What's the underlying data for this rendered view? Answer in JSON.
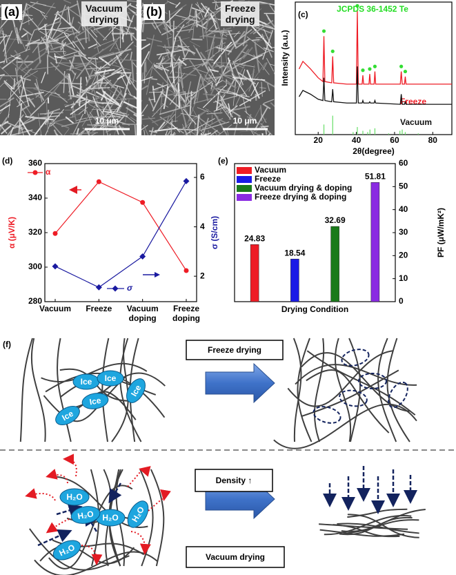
{
  "figure": {
    "a": {
      "label": "(a)",
      "caption": "Vacuum\ndrying",
      "scale_bar": "10 μm"
    },
    "b": {
      "label": "(b)",
      "caption": "Freeze\ndrying",
      "scale_bar": "10 μm"
    }
  },
  "chart_data": [
    {
      "type": "xrd",
      "label": "(c)",
      "annotation": "JCPDS 36-1452 Te",
      "ylabel": "Intensity (a.u.)",
      "xlabel": "2θ(degree)",
      "x": [
        10,
        12,
        16,
        20,
        22.5,
        23,
        23.5,
        27.1,
        27.6,
        28.1,
        35,
        40,
        40.5,
        41,
        43,
        43.4,
        43.8,
        46.6,
        47,
        47.4,
        49.3,
        49.7,
        50.1,
        63,
        63.5,
        64,
        65.2,
        65.6,
        66,
        75,
        90
      ],
      "xlim": [
        8,
        90
      ],
      "xticks": [
        20,
        40,
        60,
        80
      ],
      "ylim": [
        0,
        105
      ],
      "series": [
        {
          "name": "Freeze",
          "color": "#ee1c25",
          "values": [
            52,
            58,
            52,
            45,
            42,
            78,
            42,
            41,
            62,
            41,
            40,
            40,
            98,
            40,
            40,
            47,
            40,
            40,
            48,
            40,
            40,
            50,
            40,
            40,
            50,
            40,
            40,
            46,
            40,
            40,
            40
          ]
        },
        {
          "name": "Vacuum",
          "color": "#111111",
          "values": [
            30,
            35,
            32,
            28,
            27,
            45,
            27,
            26,
            36,
            26,
            25,
            25,
            54,
            25,
            25,
            27,
            25,
            25,
            26,
            25,
            25,
            27,
            25,
            24,
            32,
            24,
            24,
            26,
            24,
            24,
            24
          ]
        }
      ],
      "peak_markers": {
        "color": "#33dd33",
        "x": [
          23,
          27.6,
          40.5,
          43.4,
          47,
          49.7,
          63.5,
          65.6
        ],
        "values": [
          82,
          66,
          102,
          51,
          52,
          54,
          54,
          50
        ]
      },
      "reference": {
        "color": "#66dd66",
        "x": [
          23,
          27.6,
          38.3,
          40.5,
          43.4,
          45.9,
          47.1,
          49.7,
          56.9,
          62.8,
          64,
          65.6,
          72.4
        ],
        "values": [
          8,
          15,
          2,
          6,
          3,
          2,
          4,
          5,
          1,
          3,
          4,
          2,
          1
        ]
      }
    },
    {
      "type": "dual_line",
      "label": "(d)",
      "categories": [
        "Vacuum",
        "Freeze",
        "Vacuum\ndoping",
        "Freeze\ndoping"
      ],
      "ylabel": "α (μV/K)",
      "y2label": "σ (S/cm)",
      "ylim": [
        280,
        360
      ],
      "yticks": [
        280,
        300,
        320,
        340,
        360
      ],
      "y2lim": [
        0.97,
        6.56
      ],
      "y2ticks": [
        2,
        4,
        6
      ],
      "series": [
        {
          "name": "α",
          "color": "#ee1c25",
          "marker": "circle",
          "values": [
            319.5,
            349.5,
            337.5,
            298
          ]
        },
        {
          "name": "σ",
          "color": "#1a1aa0",
          "marker": "diamond",
          "axis": "y2",
          "values": [
            2.4,
            1.55,
            2.8,
            5.85
          ]
        }
      ]
    },
    {
      "type": "bar",
      "label": "(e)",
      "categories": [
        "Vacuum",
        "Freeze",
        "Vacuum drying & doping",
        "Freeze drying & doping"
      ],
      "colors": [
        "#ee1c25",
        "#1a1ae6",
        "#1a7a1a",
        "#8a2be2"
      ],
      "values": [
        24.83,
        18.54,
        32.69,
        51.81
      ],
      "ylim": [
        0,
        60
      ],
      "yticks": [
        0,
        10,
        20,
        30,
        40,
        50,
        60
      ],
      "ylabel": "PF (μW/mK²)",
      "xlabel": "Drying Condition",
      "legend": "upper left"
    }
  ],
  "schematic": {
    "label": "(f)",
    "top": {
      "process": "Freeze drying",
      "ice": [
        "Ice",
        "Ice",
        "Ice",
        "Ice",
        "Ice"
      ]
    },
    "bottom": {
      "effect": "Density ↑",
      "process": "Vacuum drying",
      "water": [
        "H₂O",
        "H₂O",
        "H₂O",
        "H₂O",
        "H₂O"
      ]
    }
  }
}
